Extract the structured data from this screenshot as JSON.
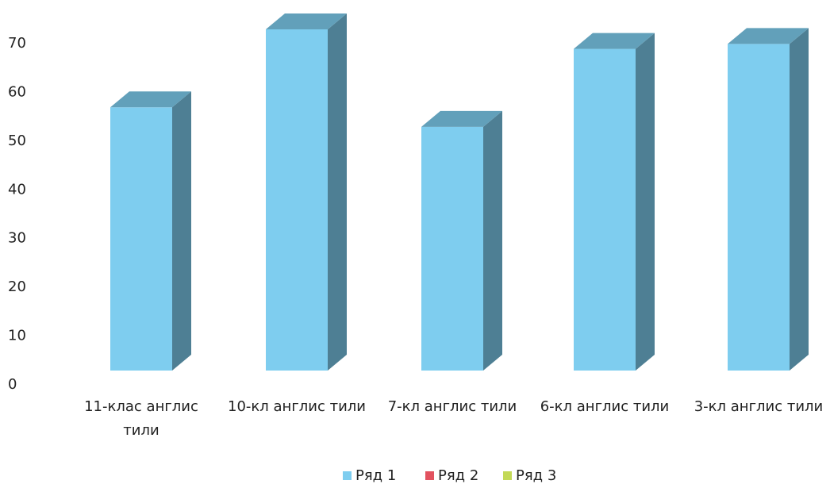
{
  "chart_data": {
    "type": "bar3d",
    "categories": [
      "11-клас англис тили",
      "10-кл англис тили",
      "7-кл англис тили",
      "6-кл англис тили",
      "3-кл англис тили"
    ],
    "series": [
      {
        "name": "Ряд 1",
        "color": "#7ecdef",
        "values": [
          54,
          70,
          50,
          66,
          67
        ]
      },
      {
        "name": "Ряд 2",
        "color": "#e2525f",
        "values": [
          null,
          null,
          null,
          null,
          null
        ]
      },
      {
        "name": "Ряд 3",
        "color": "#c3d957",
        "values": [
          null,
          null,
          null,
          null,
          null
        ]
      }
    ],
    "ylim": [
      0,
      70
    ],
    "yticks": [
      0,
      10,
      20,
      30,
      40,
      50,
      60,
      70
    ],
    "grid": false,
    "legend": "bottom"
  }
}
